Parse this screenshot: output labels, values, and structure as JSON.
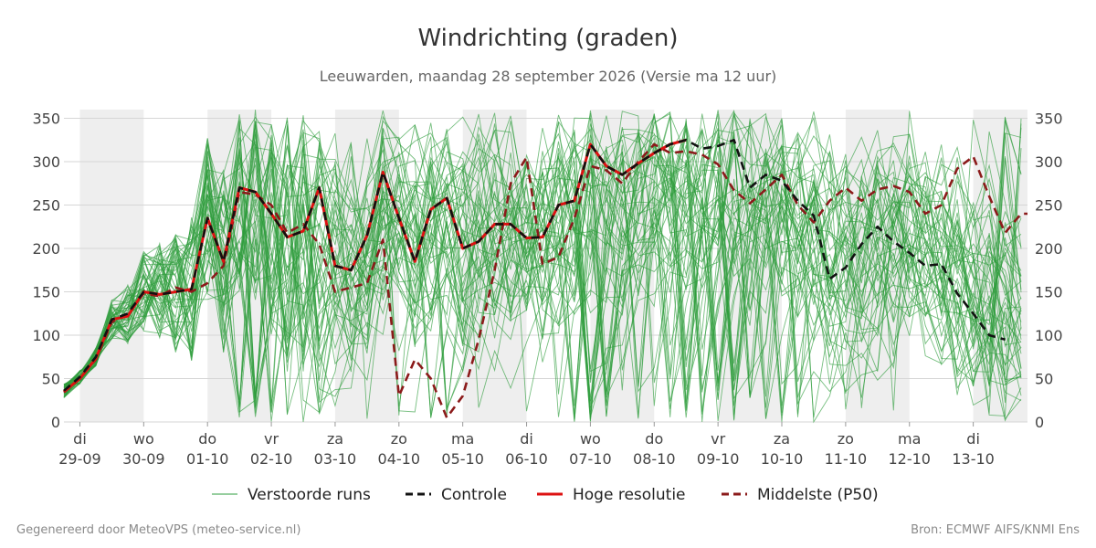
{
  "chart_data": {
    "type": "line",
    "title": "Windrichting (graden)",
    "subtitle": "Leeuwarden, maandag 28 september 2026 (Versie ma 12 uur)",
    "xlabel": "",
    "ylabel": "",
    "ylim": [
      0,
      360
    ],
    "xlim": [
      -0.25,
      14.85
    ],
    "y_ticks": [
      0,
      50,
      100,
      150,
      200,
      250,
      300,
      350
    ],
    "grid": true,
    "legend_position": "bottom",
    "x_ticks": [
      {
        "day": "di",
        "date": "29-09"
      },
      {
        "day": "wo",
        "date": "30-09"
      },
      {
        "day": "do",
        "date": "01-10"
      },
      {
        "day": "vr",
        "date": "02-10"
      },
      {
        "day": "za",
        "date": "03-10"
      },
      {
        "day": "zo",
        "date": "04-10"
      },
      {
        "day": "ma",
        "date": "05-10"
      },
      {
        "day": "di",
        "date": "06-10"
      },
      {
        "day": "wo",
        "date": "07-10"
      },
      {
        "day": "do",
        "date": "08-10"
      },
      {
        "day": "vr",
        "date": "09-10"
      },
      {
        "day": "za",
        "date": "10-10"
      },
      {
        "day": "zo",
        "date": "11-10"
      },
      {
        "day": "ma",
        "date": "12-10"
      },
      {
        "day": "di",
        "date": "13-10"
      }
    ],
    "night_bands": [
      [
        0,
        1
      ],
      [
        2,
        3
      ],
      [
        4,
        5
      ],
      [
        6,
        7
      ],
      [
        8,
        9
      ],
      [
        10,
        11
      ],
      [
        12,
        13
      ],
      [
        14,
        14.85
      ]
    ],
    "series": [
      {
        "name": "Controle",
        "color": "#111111",
        "style": "dashed",
        "x": [
          -0.25,
          0,
          0.25,
          0.5,
          0.75,
          1,
          1.25,
          1.5,
          1.75,
          2,
          2.25,
          2.5,
          2.75,
          3,
          3.25,
          3.5,
          3.75,
          4,
          4.25,
          4.5,
          4.75,
          5,
          5.25,
          5.5,
          5.75,
          6,
          6.25,
          6.5,
          6.75,
          7,
          7.25,
          7.5,
          7.75,
          8,
          8.25,
          8.5,
          8.75,
          9,
          9.25,
          9.5,
          9.75,
          10,
          10.25,
          10.5,
          10.75,
          11,
          11.25,
          11.5,
          11.75,
          12,
          12.25,
          12.5,
          12.75,
          13,
          13.25,
          13.5,
          13.75,
          14,
          14.25,
          14.5
        ],
        "y": [
          36,
          52,
          75,
          118,
          125,
          150,
          147,
          150,
          153,
          235,
          185,
          270,
          265,
          240,
          213,
          220,
          270,
          180,
          175,
          215,
          288,
          235,
          185,
          245,
          258,
          200,
          208,
          228,
          228,
          212,
          213,
          250,
          255,
          320,
          295,
          285,
          298,
          310,
          320,
          325,
          315,
          318,
          325,
          270,
          285,
          278,
          255,
          238,
          165,
          178,
          205,
          225,
          208,
          195,
          180,
          182,
          148,
          125,
          100,
          95
        ]
      },
      {
        "name": "Hoge resolutie",
        "color": "#dd1111",
        "style": "solid",
        "x": [
          -0.25,
          0,
          0.25,
          0.5,
          0.75,
          1,
          1.25,
          1.5,
          1.75,
          2,
          2.25,
          2.5,
          2.75,
          3,
          3.25,
          3.5,
          3.75,
          4,
          4.25,
          4.5,
          4.75,
          5,
          5.25,
          5.5,
          5.75,
          6,
          6.25,
          6.5,
          6.75,
          7,
          7.25,
          7.5,
          7.75,
          8,
          8.25,
          8.5,
          8.75,
          9,
          9.25,
          9.5,
          9.75
        ],
        "y": [
          35,
          50,
          73,
          118,
          122,
          150,
          147,
          150,
          153,
          235,
          185,
          270,
          265,
          240,
          213,
          220,
          270,
          180,
          175,
          215,
          288,
          235,
          185,
          245,
          258,
          200,
          208,
          228,
          228,
          212,
          213,
          250,
          255,
          320,
          295,
          285,
          298,
          310,
          320,
          325,
          null
        ]
      },
      {
        "name": "Middelste (P50)",
        "color": "#8b1a1a",
        "style": "dashed",
        "x": [
          -0.25,
          0,
          0.25,
          0.5,
          0.75,
          1,
          1.25,
          1.5,
          1.75,
          2,
          2.25,
          2.5,
          2.75,
          3,
          3.25,
          3.5,
          3.75,
          4,
          4.25,
          4.5,
          4.75,
          5,
          5.25,
          5.5,
          5.75,
          6,
          6.25,
          6.5,
          6.75,
          7,
          7.25,
          7.5,
          7.75,
          8,
          8.25,
          8.5,
          8.75,
          9,
          9.25,
          9.5,
          9.75,
          10,
          10.25,
          10.5,
          10.75,
          11,
          11.25,
          11.5,
          11.75,
          12,
          12.25,
          12.5,
          12.75,
          13,
          13.25,
          13.5,
          13.75,
          14,
          14.25,
          14.5,
          14.75,
          14.85
        ],
        "y": [
          34,
          50,
          72,
          115,
          125,
          148,
          145,
          155,
          150,
          160,
          180,
          265,
          262,
          250,
          218,
          228,
          205,
          150,
          155,
          160,
          210,
          30,
          72,
          50,
          5,
          30,
          95,
          175,
          275,
          305,
          182,
          190,
          235,
          295,
          290,
          275,
          300,
          320,
          310,
          312,
          308,
          297,
          267,
          252,
          268,
          285,
          250,
          230,
          255,
          270,
          255,
          268,
          272,
          265,
          240,
          250,
          292,
          306,
          260,
          218,
          240,
          240
        ]
      }
    ],
    "ensemble": {
      "name": "Verstoorde runs",
      "color": "#2e9c3c",
      "member_count": 50
    },
    "legend": [
      {
        "name": "Verstoorde runs",
        "color": "#2e9c3c",
        "style": "thin"
      },
      {
        "name": "Controle",
        "color": "#111111",
        "style": "dashed"
      },
      {
        "name": "Hoge resolutie",
        "color": "#dd1111",
        "style": "solid"
      },
      {
        "name": "Middelste (P50)",
        "color": "#8b1a1a",
        "style": "dashed"
      }
    ]
  },
  "footer": {
    "left": "Gegenereerd door MeteoVPS (meteo-service.nl)",
    "right": "Bron: ECMWF AIFS/KNMI Ens"
  }
}
